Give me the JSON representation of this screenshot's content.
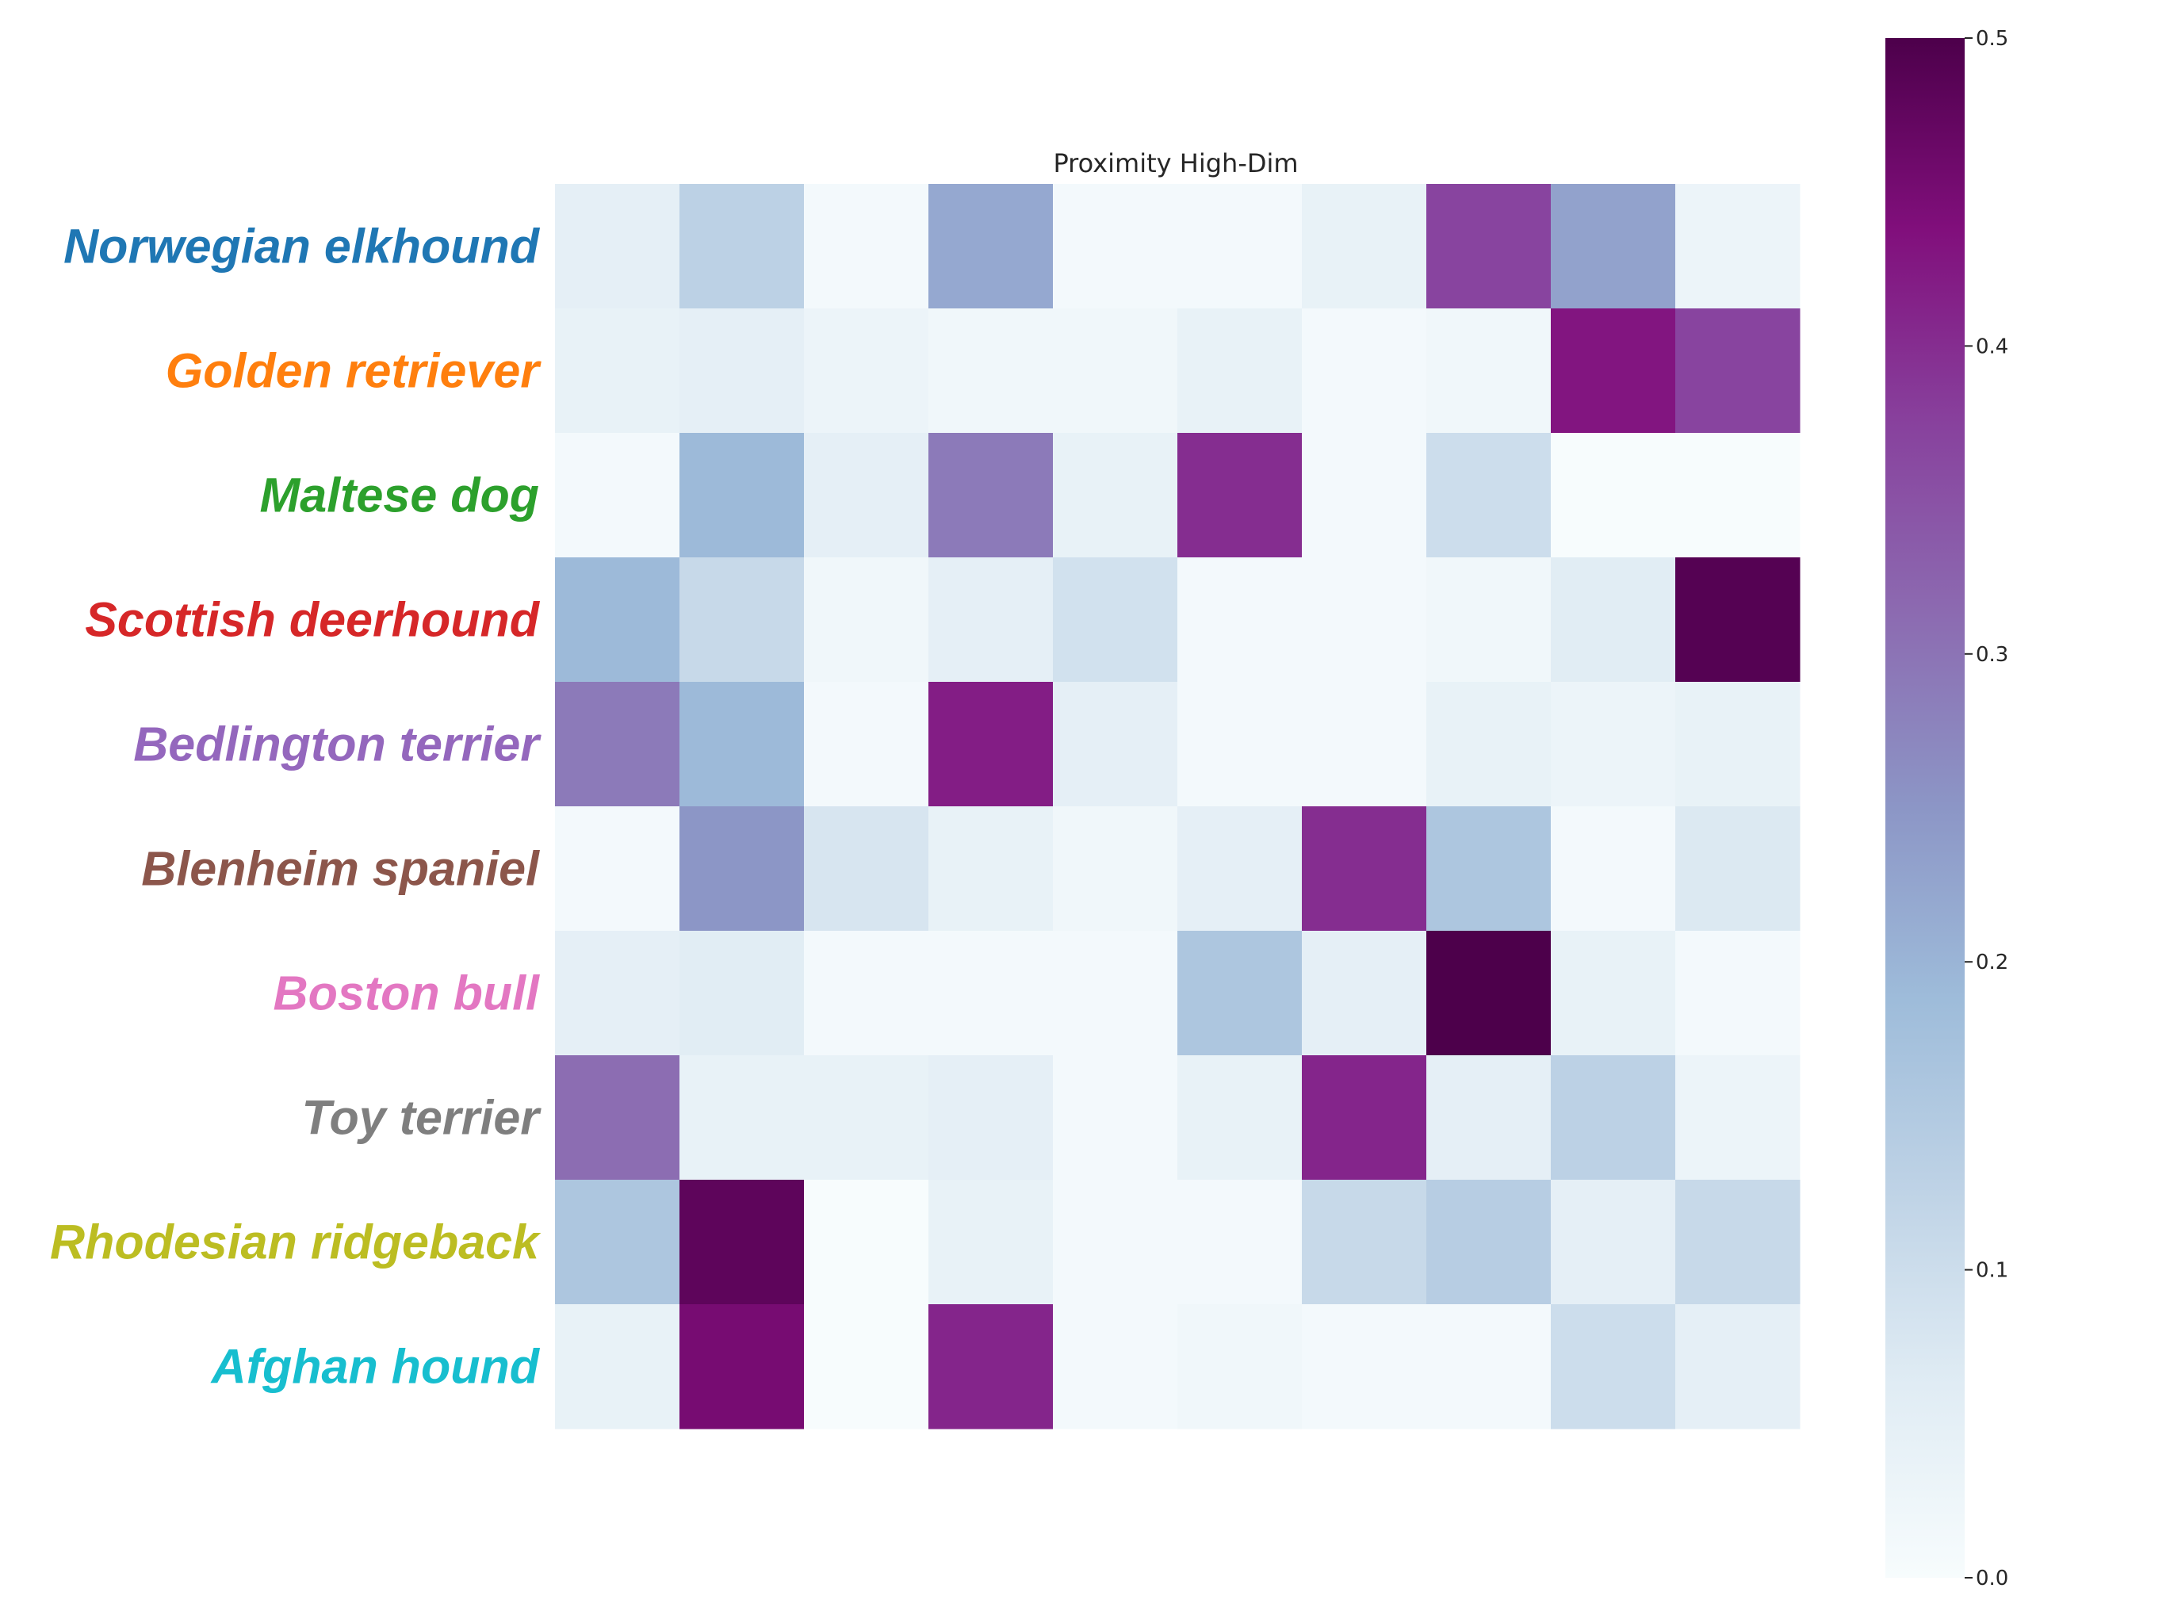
{
  "chart_data": {
    "type": "heatmap",
    "title": "Proximity High-Dim",
    "rows": [
      {
        "label": "Norwegian elkhound",
        "color": "#1f77b4"
      },
      {
        "label": "Golden retriever",
        "color": "#ff7f0e"
      },
      {
        "label": "Maltese dog",
        "color": "#2ca02c"
      },
      {
        "label": "Scottish deerhound",
        "color": "#d62728"
      },
      {
        "label": "Bedlington terrier",
        "color": "#9467bd"
      },
      {
        "label": "Blenheim spaniel",
        "color": "#8c564b"
      },
      {
        "label": "Boston bull",
        "color": "#e377c2"
      },
      {
        "label": "Toy terrier",
        "color": "#7f7f7f"
      },
      {
        "label": "Rhodesian ridgeback",
        "color": "#bcbd22"
      },
      {
        "label": "Afghan hound",
        "color": "#17becf"
      }
    ],
    "values": [
      [
        0.05,
        0.13,
        0.01,
        0.22,
        0.01,
        0.01,
        0.04,
        0.37,
        0.23,
        0.03
      ],
      [
        0.04,
        0.05,
        0.03,
        0.02,
        0.02,
        0.04,
        0.01,
        0.02,
        0.43,
        0.37
      ],
      [
        0.01,
        0.19,
        0.05,
        0.29,
        0.04,
        0.4,
        0.01,
        0.1,
        0.0,
        0.0
      ],
      [
        0.19,
        0.11,
        0.02,
        0.05,
        0.09,
        0.01,
        0.01,
        0.02,
        0.06,
        0.49
      ],
      [
        0.29,
        0.19,
        0.01,
        0.42,
        0.05,
        0.01,
        0.01,
        0.04,
        0.03,
        0.04
      ],
      [
        0.01,
        0.25,
        0.08,
        0.04,
        0.02,
        0.05,
        0.4,
        0.16,
        0.01,
        0.07
      ],
      [
        0.05,
        0.06,
        0.01,
        0.01,
        0.01,
        0.16,
        0.05,
        0.5,
        0.04,
        0.01
      ],
      [
        0.31,
        0.04,
        0.04,
        0.05,
        0.01,
        0.04,
        0.41,
        0.05,
        0.13,
        0.03
      ],
      [
        0.16,
        0.48,
        0.0,
        0.04,
        0.01,
        0.01,
        0.11,
        0.14,
        0.05,
        0.11
      ],
      [
        0.04,
        0.45,
        0.0,
        0.41,
        0.01,
        0.02,
        0.01,
        0.01,
        0.1,
        0.05
      ]
    ],
    "colorbar": {
      "colormap": "BuPu",
      "range": [
        0.0,
        0.5
      ],
      "ticks": [
        "0.0",
        "0.1",
        "0.2",
        "0.3",
        "0.4",
        "0.5"
      ]
    }
  }
}
